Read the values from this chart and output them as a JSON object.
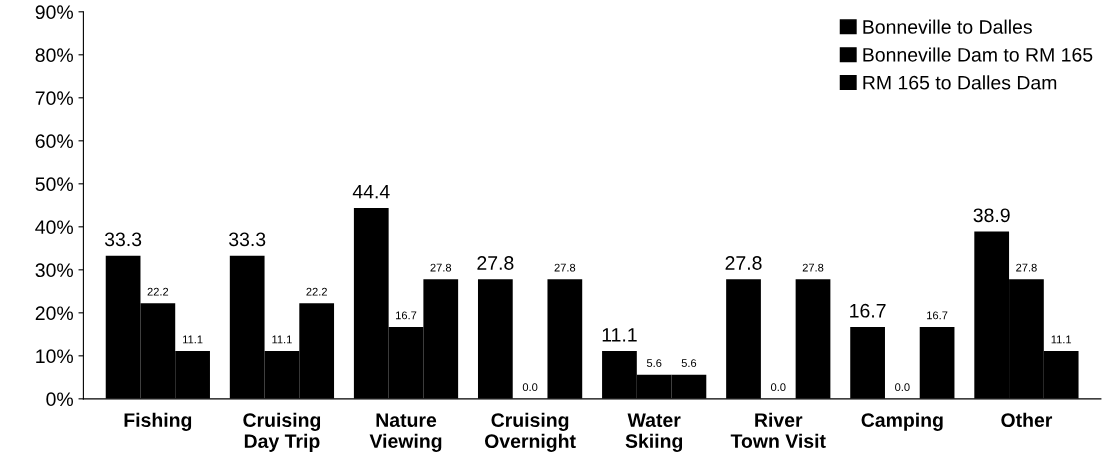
{
  "chart_data": {
    "type": "bar",
    "categories": [
      "Fishing",
      "Cruising\nDay Trip",
      "Nature\nViewing",
      "Cruising\nOvernight",
      "Water\nSkiing",
      "River\nTown Visit",
      "Camping",
      "Other"
    ],
    "series": [
      {
        "name": "Bonneville to Dalles",
        "color": "#000000",
        "values": [
          33.3,
          33.3,
          44.4,
          27.8,
          11.1,
          27.8,
          16.7,
          38.9
        ],
        "value_labels": [
          "33.3",
          "33.3",
          "44.4",
          "27.8",
          "11.1",
          "27.8",
          "16.7",
          "38.9"
        ]
      },
      {
        "name": "Bonneville Dam to RM 165",
        "color": "#000000",
        "values": [
          22.2,
          11.1,
          16.7,
          0.0,
          5.6,
          0.0,
          0.0,
          27.8
        ],
        "value_labels": [
          "22.2",
          "11.1",
          "16.7",
          "0.0",
          "5.6",
          "0.0",
          "0.0",
          "27.8"
        ]
      },
      {
        "name": "RM 165 to Dalles Dam",
        "color": "#000000",
        "values": [
          11.1,
          22.2,
          27.8,
          27.8,
          5.6,
          27.8,
          16.7,
          11.1
        ],
        "value_labels": [
          "11.1",
          "22.2",
          "27.8",
          "27.8",
          "5.6",
          "27.8",
          "16.7",
          "11.1"
        ]
      }
    ],
    "ylim": [
      0,
      90
    ],
    "yticks": [
      {
        "value": 0,
        "label": "0%"
      },
      {
        "value": 10,
        "label": "10%"
      },
      {
        "value": 20,
        "label": "20%"
      },
      {
        "value": 30,
        "label": "30%"
      },
      {
        "value": 40,
        "label": "40%"
      },
      {
        "value": 50,
        "label": "50%"
      },
      {
        "value": 60,
        "label": "60%"
      },
      {
        "value": 70,
        "label": "70%"
      },
      {
        "value": 80,
        "label": "80%"
      },
      {
        "value": 90,
        "label": "90%"
      }
    ],
    "grid": false,
    "legend": "top right"
  }
}
